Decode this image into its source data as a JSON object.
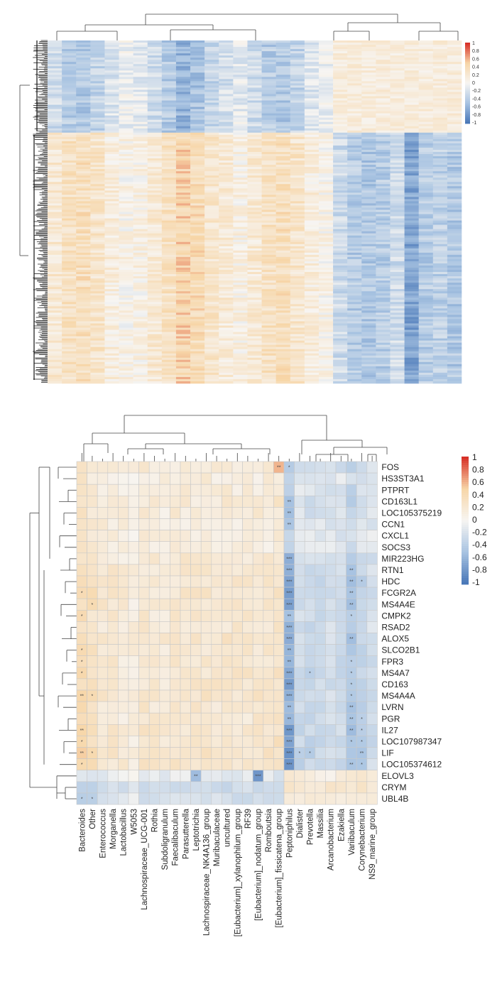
{
  "colors": {
    "negative": "#4575b4",
    "neutral": "#f7f7f7",
    "positive": "#d73027",
    "mid_positive": "#f6d4a4",
    "mid_negative": "#b8cfe8"
  },
  "chart_data": [
    {
      "type": "heatmap",
      "description_level": "overview",
      "rows_shown_as": "dense gene clusters",
      "legend_ticks": [
        "1",
        "0.8",
        "0.6",
        "0.4",
        "0.2",
        "0",
        "-0.2",
        "-0.4",
        "-0.6",
        "-0.8",
        "-1"
      ],
      "value_range": [
        -1,
        1
      ]
    },
    {
      "type": "heatmap",
      "rows": [
        "FOS",
        "HS3ST3A1",
        "PTPRT",
        "CD163L1",
        "LOC105375219",
        "CCN1",
        "CXCL1",
        "SOCS3",
        "MIR223HG",
        "RTN1",
        "HDC",
        "FCGR2A",
        "MS4A4E",
        "CMPK2",
        "RSAD2",
        "ALOX5",
        "SLCO2B1",
        "FPR3",
        "MS4A7",
        "CD163",
        "MS4A4A",
        "LVRN",
        "PGR",
        "IL27",
        "LOC107987347",
        "LIF",
        "LOC105374612",
        "ELOVL3",
        "CRYM",
        "UBL4B"
      ],
      "columns": [
        "Bacteroides",
        "Other",
        "Enterococcus",
        "Morganella",
        "Lactobacillus",
        "W5053",
        "Lachnospiraceae_UCG-001",
        "Rothia",
        "Subdoligranulum",
        "Faecalibaculum",
        "Parasutterella",
        "Leptotrichia",
        "Lachnospiraceae_NK4A136_group",
        "Muribaculaceae",
        "uncultured",
        "[Eubacterium]_xylanophilum_group",
        "RF39",
        "[Eubacterium]_nodatum_group",
        "Romboutsia",
        "[Eubacterium]_fissicatena_group",
        "Peptoniphilus",
        "Dialister",
        "Prevotella",
        "Massilia",
        "Arcanobacterium",
        "Ezakiella",
        "Variibaculum",
        "Corynebacterium",
        "NS9_marine_group"
      ],
      "legend_ticks": [
        "1",
        "0.8",
        "0.6",
        "0.4",
        "0.2",
        "0",
        "-0.2",
        "-0.4",
        "-0.6",
        "-0.8",
        "-1"
      ],
      "value_range": [
        -1,
        1
      ],
      "pattern_note": "rows FOS..LOC105374612 positive (orange) for first 20 columns, negative (blue) for last 9; rows ELOVL3..UBL4B inverse",
      "strong_negative_column": "Peptoniphilus"
    }
  ]
}
